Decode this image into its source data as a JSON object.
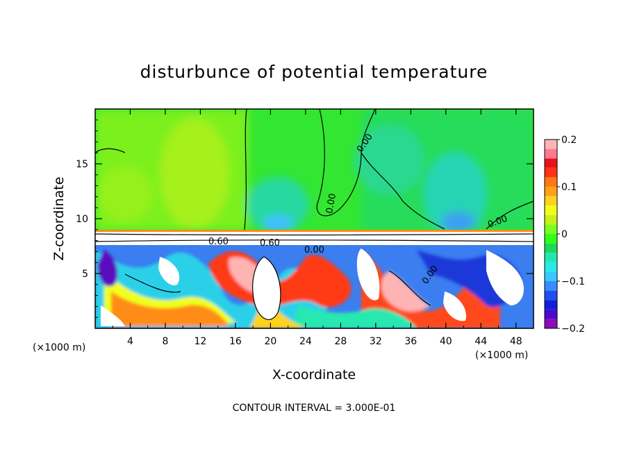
{
  "chart_data": {
    "type": "heatmap",
    "title": "disturbunce of potential temperature",
    "xlabel": "X-coordinate",
    "ylabel": "Z-coordinate",
    "x_unit_left": "(×1000 m)",
    "x_unit_right": "(×1000 m)",
    "xlim": [
      0,
      50
    ],
    "ylim": [
      0,
      20
    ],
    "xticks": [
      4,
      8,
      12,
      16,
      20,
      24,
      28,
      32,
      36,
      40,
      44,
      48
    ],
    "xtick_labels": [
      "4",
      "8",
      "12",
      "16",
      "20",
      "24",
      "28",
      "32",
      "36",
      "40",
      "44",
      "48"
    ],
    "yticks": [
      5,
      10,
      15
    ],
    "ytick_labels": [
      "5",
      "10",
      "15"
    ],
    "colorbar": {
      "min": -0.2,
      "max": 0.2,
      "tick_labels": [
        "0.2",
        "0.1",
        "0",
        "−0.1",
        "−0.2"
      ],
      "tick_values": [
        0.2,
        0.1,
        0,
        -0.1,
        -0.2
      ],
      "colors": [
        "#8c0cb8",
        "#4b0acc",
        "#1020d8",
        "#1e50f0",
        "#3b8cff",
        "#38c8ff",
        "#2ae8e8",
        "#22e8b0",
        "#1ed85a",
        "#32ff1a",
        "#7cff20",
        "#c8f01a",
        "#f0ff1a",
        "#ffd21e",
        "#ffa01a",
        "#ff7814",
        "#ff3214",
        "#e81414",
        "#ff7890",
        "#ffb4b4"
      ]
    },
    "contour_labels": [
      "0.00",
      "0.00",
      "0.00",
      "0.00",
      "0.60",
      "0.60",
      "0.00"
    ],
    "contour_interval_text": "CONTOUR INTERVAL = 3.000E-01"
  }
}
